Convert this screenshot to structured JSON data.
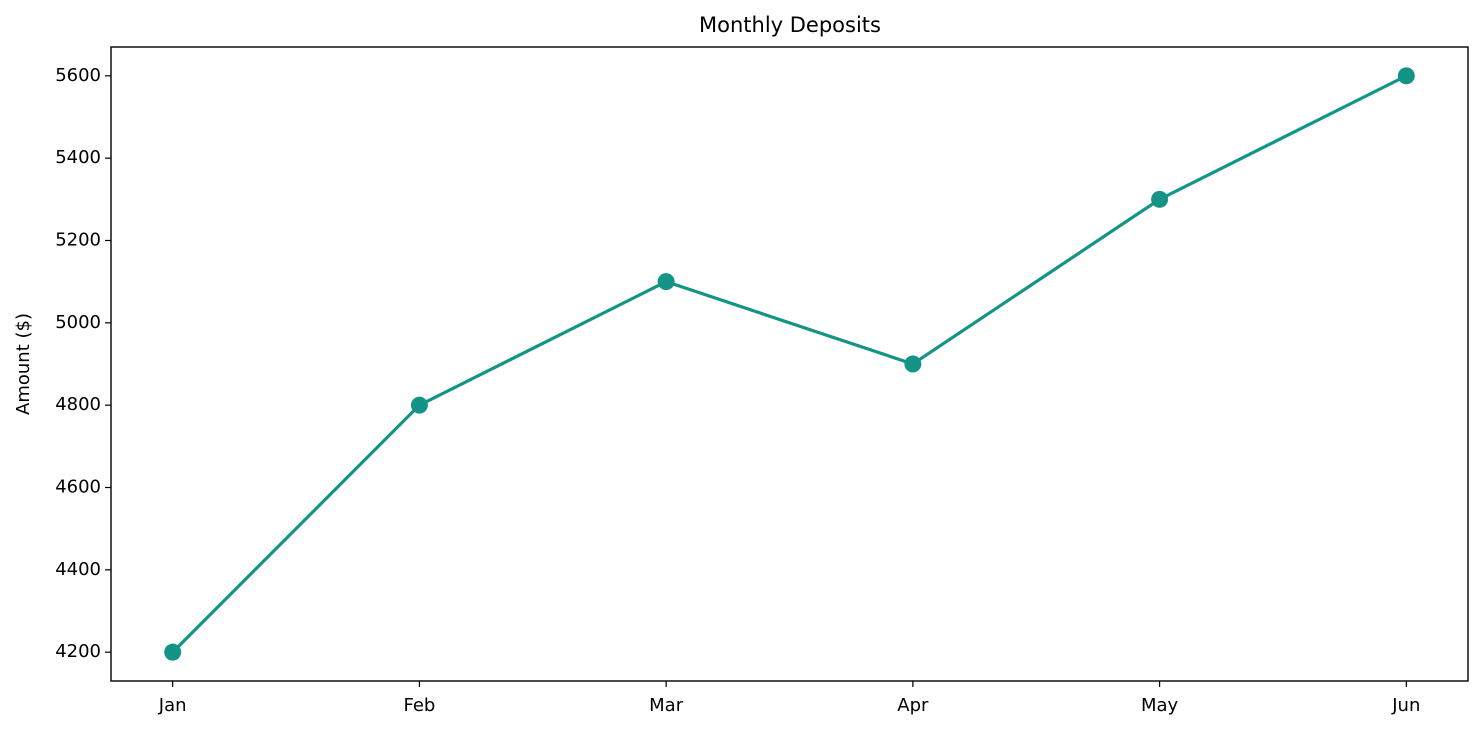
{
  "chart_data": {
    "type": "line",
    "title": "Monthly Deposits",
    "y_label": "Amount ($)",
    "categories": [
      "Jan",
      "Feb",
      "Mar",
      "Apr",
      "May",
      "Jun"
    ],
    "values": [
      4200,
      4800,
      5100,
      4900,
      5300,
      5600
    ],
    "color": "#139487",
    "ylim": [
      4130,
      5670
    ],
    "yticks": [
      4200,
      4400,
      4600,
      4800,
      5000,
      5200,
      5400,
      5600
    ],
    "grid": false,
    "markers": true
  }
}
